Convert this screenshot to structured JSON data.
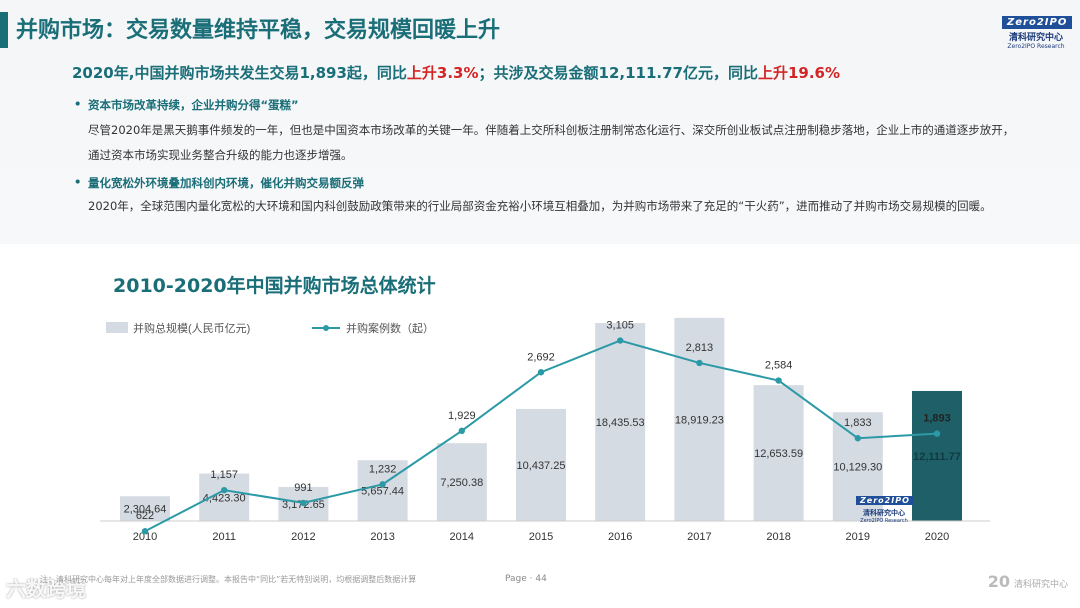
{
  "header": {
    "title": "并购市场：交易数量维持平稳，交易规模回暖上升",
    "logo_mark": "Zero2IPO",
    "logo_cn": "清科研究中心",
    "logo_en": "Zero2IPO Research"
  },
  "headline": {
    "part1": "2020年,中国并购市场共发生交易1,893起，同比",
    "red1": "上升3.3%",
    "part2": "；共涉及交易金额12,111.77亿元，同比",
    "red2": "上升19.6%"
  },
  "bullets": [
    {
      "title": "资本市场改革持续，企业并购分得“蛋糕”",
      "text": "尽管2020年是黑天鹅事件频发的一年，但也是中国资本市场改革的关键一年。伴随着上交所科创板注册制常态化运行、深交所创业板试点注册制稳步落地，企业上市的通道逐步放开，通过资本市场实现业务整合升级的能力也逐步增强。"
    },
    {
      "title": "量化宽松外环境叠加科创内环境，催化并购交易额反弹",
      "text": "2020年，全球范围内量化宽松的大环境和国内科创鼓励政策带来的行业局部资金充裕小环境互相叠加，为并购市场带来了充足的“干火药”，进而推动了并购市场交易规模的回暖。"
    }
  ],
  "chart_data": {
    "type": "bar",
    "title": "2010-2020年中国并购市场总体统计",
    "categories": [
      "2010",
      "2011",
      "2012",
      "2013",
      "2014",
      "2015",
      "2016",
      "2017",
      "2018",
      "2019",
      "2020"
    ],
    "series": [
      {
        "name": "并购总规模(人民币亿元)",
        "type": "bar",
        "values": [
          2304.64,
          4423.3,
          3172.65,
          5657.44,
          7250.38,
          10437.25,
          18435.53,
          18919.23,
          12653.59,
          10129.3,
          12111.77
        ],
        "labels": [
          "2,304.64",
          "4,423.30",
          "3,172.65",
          "5,657.44",
          "7,250.38",
          "10,437.25",
          "18,435.53",
          "18,919.23",
          "12,653.59",
          "10,129.30",
          "12,111.77"
        ]
      },
      {
        "name": "并购案例数（起）",
        "type": "line",
        "values": [
          622,
          1157,
          991,
          1232,
          1929,
          2692,
          3105,
          2813,
          2584,
          1833,
          1893
        ],
        "labels": [
          "622",
          "1,157",
          "991",
          "1,232",
          "1,929",
          "2,692",
          "3,105",
          "2,813",
          "2,584",
          "1,833",
          "1,893"
        ]
      }
    ],
    "legend": "top-left",
    "grid": false,
    "colors": {
      "bar": "#d5dbe3",
      "bar_highlight": "#1f5f68",
      "line": "#2b9aa6"
    }
  },
  "footer": {
    "note": "注：清科研究中心每年对上年度全部数据进行调整。本报告中“同比”若无特别说明，均根据调整后数据计算",
    "page": "Page · 44",
    "watermark": "六数跨境",
    "brand_big": "20",
    "brand_text": "清科研究中心"
  }
}
